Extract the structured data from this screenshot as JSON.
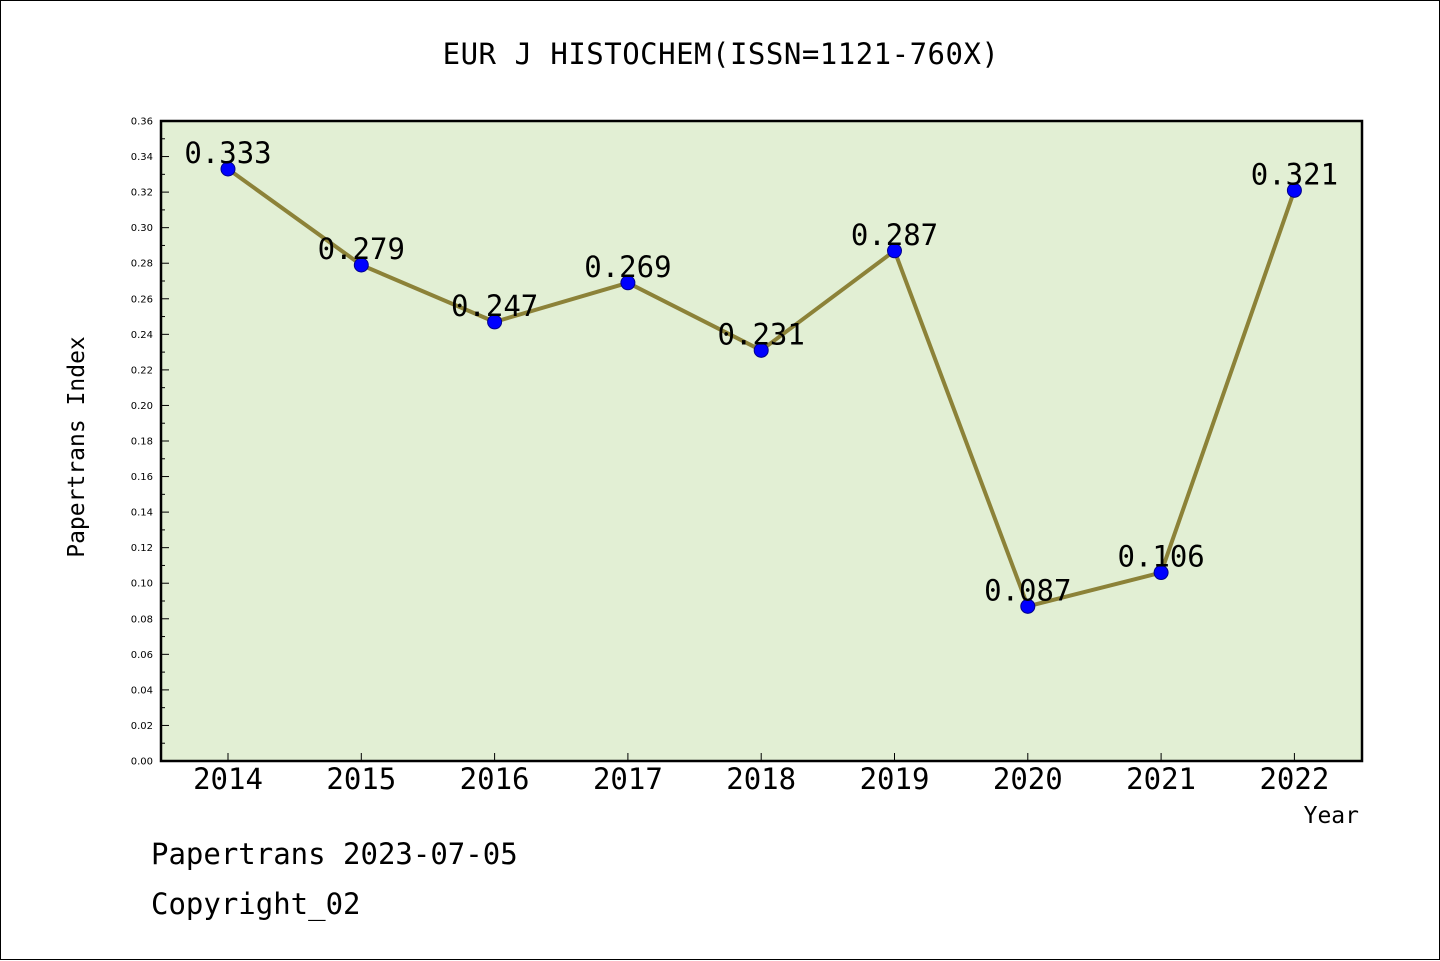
{
  "chart_data": {
    "type": "line",
    "title": "EUR J HISTOCHEM(ISSN=1121-760X)",
    "xlabel": "Year",
    "ylabel": "Papertrans Index",
    "categories": [
      "2014",
      "2015",
      "2016",
      "2017",
      "2018",
      "2019",
      "2020",
      "2021",
      "2022"
    ],
    "values": [
      0.333,
      0.279,
      0.247,
      0.269,
      0.231,
      0.287,
      0.087,
      0.106,
      0.321
    ],
    "data_labels": [
      "0.333",
      "0.279",
      "0.247",
      "0.269",
      "0.231",
      "0.287",
      "0.087",
      "0.106",
      "0.321"
    ],
    "ylim": [
      0,
      0.36
    ],
    "yticks": [
      "0.00",
      "0.02",
      "0.04",
      "0.06",
      "0.08",
      "0.10",
      "0.12",
      "0.14",
      "0.16",
      "0.18",
      "0.20",
      "0.22",
      "0.24",
      "0.26",
      "0.28",
      "0.30",
      "0.32",
      "0.34",
      "0.36"
    ],
    "grid": false,
    "colors": {
      "plot_background": "#e2efd4",
      "line": "#8c8238",
      "marker": "#0000ff"
    }
  },
  "footer": {
    "date_text": "Papertrans 2023-07-05",
    "copyright_text": "Copyright_02"
  }
}
